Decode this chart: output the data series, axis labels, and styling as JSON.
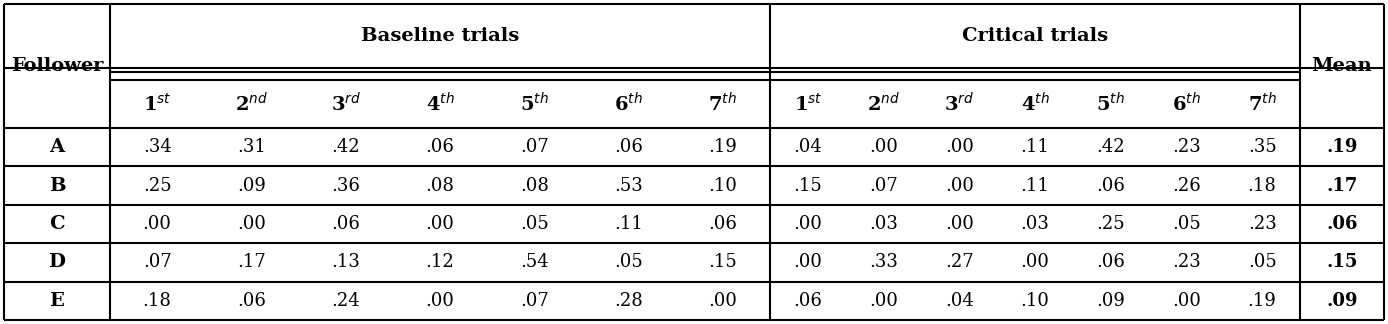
{
  "followers": [
    "A",
    "B",
    "C",
    "D",
    "E"
  ],
  "baseline_trials": [
    [
      ".34",
      ".31",
      ".42",
      ".06",
      ".07",
      ".06",
      ".19"
    ],
    [
      ".25",
      ".09",
      ".36",
      ".08",
      ".08",
      ".53",
      ".10"
    ],
    [
      ".00",
      ".00",
      ".06",
      ".00",
      ".05",
      ".11",
      ".06"
    ],
    [
      ".07",
      ".17",
      ".13",
      ".12",
      ".54",
      ".05",
      ".15"
    ],
    [
      ".18",
      ".06",
      ".24",
      ".00",
      ".07",
      ".28",
      ".00"
    ]
  ],
  "critical_trials": [
    [
      ".04",
      ".00",
      ".00",
      ".11",
      ".42",
      ".23",
      ".35"
    ],
    [
      ".15",
      ".07",
      ".00",
      ".11",
      ".06",
      ".26",
      ".18"
    ],
    [
      ".00",
      ".03",
      ".00",
      ".03",
      ".25",
      ".05",
      ".23"
    ],
    [
      ".00",
      ".33",
      ".27",
      ".00",
      ".06",
      ".23",
      ".05"
    ],
    [
      ".06",
      ".00",
      ".04",
      ".10",
      ".09",
      ".00",
      ".19"
    ]
  ],
  "means": [
    ".19",
    ".17",
    ".06",
    ".15",
    ".09"
  ],
  "col_header_baseline": "Baseline trials",
  "col_header_critical": "Critical trials",
  "col_header_follower": "Follower",
  "col_header_mean": "Mean",
  "bg_color": "#ffffff",
  "line_color": "#000000",
  "header_fontsize": 14,
  "data_fontsize": 13,
  "follower_fontsize": 14
}
